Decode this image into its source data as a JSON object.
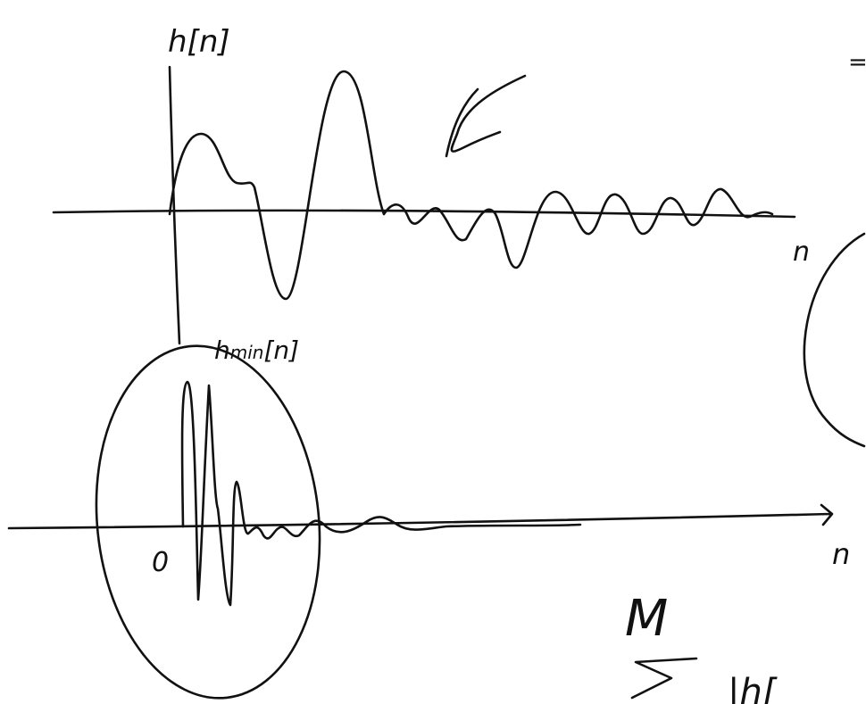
{
  "sketch": {
    "top_plot": {
      "axis_label": "h[n]",
      "x_label": "n",
      "side_mark": "="
    },
    "bottom_plot": {
      "axis_label_main": "h",
      "axis_label_sub": "min",
      "axis_label_arg": "[n]",
      "origin_label": "0",
      "x_label": "n"
    },
    "sum": {
      "upper_limit": "M",
      "term": "|h["
    }
  }
}
